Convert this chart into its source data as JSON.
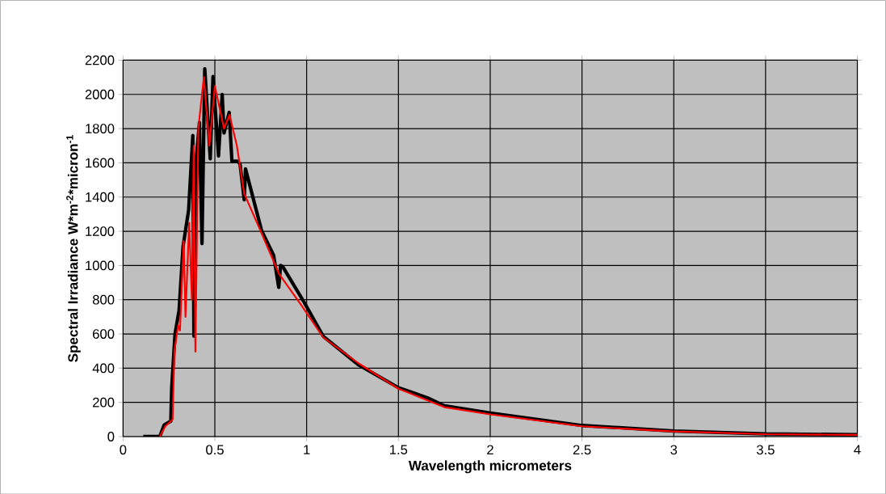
{
  "chart_data": {
    "type": "line",
    "xlabel": "Wavelength micrometers",
    "ylabel": "Spectral Irradiance W*m$^{-2}$*micron$^{-1}$",
    "series": [
      {
        "color": "#000000",
        "x": [
          0.11,
          0.2,
          0.224,
          0.26,
          0.265,
          0.283,
          0.305,
          0.327,
          0.357,
          0.38,
          0.386,
          0.4,
          0.416,
          0.43,
          0.445,
          0.475,
          0.49,
          0.52,
          0.54,
          0.55,
          0.578,
          0.593,
          0.622,
          0.637,
          0.66,
          0.667,
          0.755,
          0.82,
          0.848,
          0.858,
          0.87,
          0.988,
          1.09,
          1.28,
          1.5,
          1.66,
          1.75,
          2.0,
          2.5,
          3.0,
          3.5,
          4.0
        ],
        "values": [
          0,
          0,
          68,
          90,
          286,
          600,
          737,
          1113,
          1323,
          1760,
          587,
          1640,
          1835,
          1128,
          2150,
          1624,
          2105,
          1640,
          2000,
          1775,
          1895,
          1610,
          1610,
          1595,
          1384,
          1565,
          1203,
          1060,
          872,
          1000,
          993,
          782,
          587,
          421,
          286,
          226,
          180,
          138,
          65,
          33,
          16,
          11
        ]
      },
      {
        "color": "#ff0000",
        "x": [
          0.2,
          0.23,
          0.27,
          0.28,
          0.3,
          0.31,
          0.33,
          0.34,
          0.36,
          0.375,
          0.385,
          0.394,
          0.41,
          0.44,
          0.47,
          0.5,
          0.55,
          0.58,
          0.62,
          0.66,
          0.75,
          0.85,
          0.97,
          1.09,
          1.28,
          1.5,
          1.75,
          2.0,
          2.5,
          3.0,
          3.5,
          4.0
        ],
        "values": [
          0,
          60,
          100,
          500,
          650,
          620,
          1143,
          700,
          1250,
          800,
          1700,
          496,
          1800,
          2100,
          1700,
          2050,
          1800,
          1880,
          1700,
          1420,
          1200,
          950,
          770,
          580,
          430,
          280,
          172,
          130,
          60,
          30,
          14,
          10
        ]
      }
    ],
    "xlim": [
      0,
      4
    ],
    "xticks": [
      0,
      0.5,
      1,
      1.5,
      2,
      2.5,
      3,
      3.5,
      4
    ],
    "ylim": [
      0,
      2200
    ],
    "yticks": [
      0,
      200,
      400,
      600,
      800,
      1000,
      1200,
      1400,
      1600,
      1800,
      2000,
      2200
    ],
    "grid": true,
    "marker": "none",
    "line_style": "solid"
  }
}
